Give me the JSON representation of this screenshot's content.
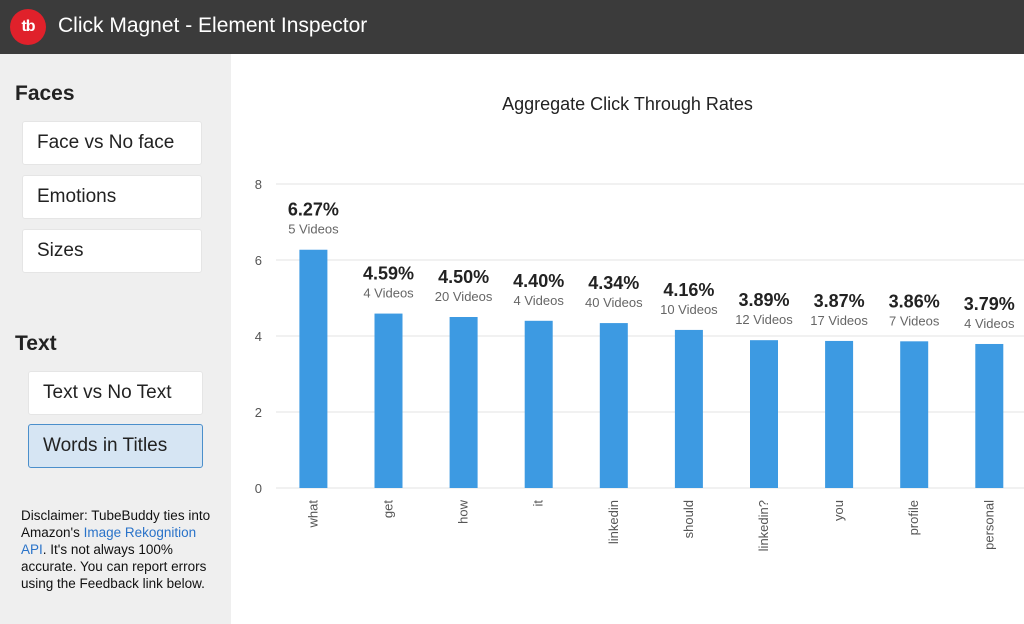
{
  "app": {
    "logo_text": "tb",
    "title": "Click Magnet - Element Inspector"
  },
  "sidebar": {
    "faces_title": "Faces",
    "faces_items": [
      {
        "label": "Face vs No face"
      },
      {
        "label": "Emotions"
      },
      {
        "label": "Sizes"
      }
    ],
    "text_title": "Text",
    "text_items": [
      {
        "label": "Text vs No Text",
        "active": false
      },
      {
        "label": "Words in Titles",
        "active": true
      }
    ],
    "disclaimer": {
      "before": "Disclaimer: TubeBuddy ties into Amazon's ",
      "link": "Image Rekognition API",
      "after": ". It's not always 100% accurate. You can report errors using the Feedback link below."
    }
  },
  "colors": {
    "bar": "#3d9ae2",
    "titlebar": "#3b3b3b",
    "logo": "#e0212b",
    "accent": "#4b8fcb"
  },
  "chart_data": {
    "type": "bar",
    "title": "Aggregate Click Through Rates",
    "xlabel": "",
    "ylabel": "",
    "ylim": [
      0,
      8
    ],
    "yticks": [
      0,
      2,
      4,
      6,
      8
    ],
    "grid": true,
    "categories": [
      "what",
      "get",
      "how",
      "it",
      "linkedin",
      "should",
      "linkedin?",
      "you",
      "profile",
      "personal"
    ],
    "values": [
      6.27,
      4.59,
      4.5,
      4.4,
      4.34,
      4.16,
      3.89,
      3.87,
      3.86,
      3.79
    ],
    "value_labels": [
      "6.27%",
      "4.59%",
      "4.50%",
      "4.40%",
      "4.34%",
      "4.16%",
      "3.89%",
      "3.87%",
      "3.86%",
      "3.79%"
    ],
    "video_counts": [
      "5 Videos",
      "4 Videos",
      "20 Videos",
      "4 Videos",
      "40 Videos",
      "10 Videos",
      "12 Videos",
      "17 Videos",
      "7 Videos",
      "4 Videos"
    ]
  }
}
